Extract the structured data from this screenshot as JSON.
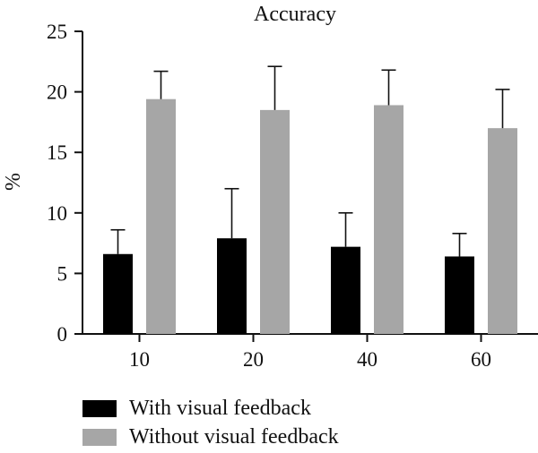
{
  "chart_data": {
    "type": "bar",
    "title": "Accuracy",
    "ylabel": "%",
    "xlabel": "",
    "ylim": [
      0,
      25
    ],
    "yticks": [
      0,
      5,
      10,
      15,
      20,
      25
    ],
    "categories": [
      "10",
      "20",
      "40",
      "60"
    ],
    "series": [
      {
        "name": "With visual feedback",
        "color": "#000000",
        "values": [
          6.6,
          7.9,
          7.2,
          6.4
        ],
        "error": [
          2.0,
          4.1,
          2.8,
          1.9
        ]
      },
      {
        "name": "Without visual feedback",
        "color": "#a6a6a6",
        "values": [
          19.4,
          18.5,
          18.9,
          17.0
        ],
        "error": [
          2.3,
          3.6,
          2.9,
          3.2
        ]
      }
    ],
    "legend": "bottom-left",
    "grid": false
  }
}
